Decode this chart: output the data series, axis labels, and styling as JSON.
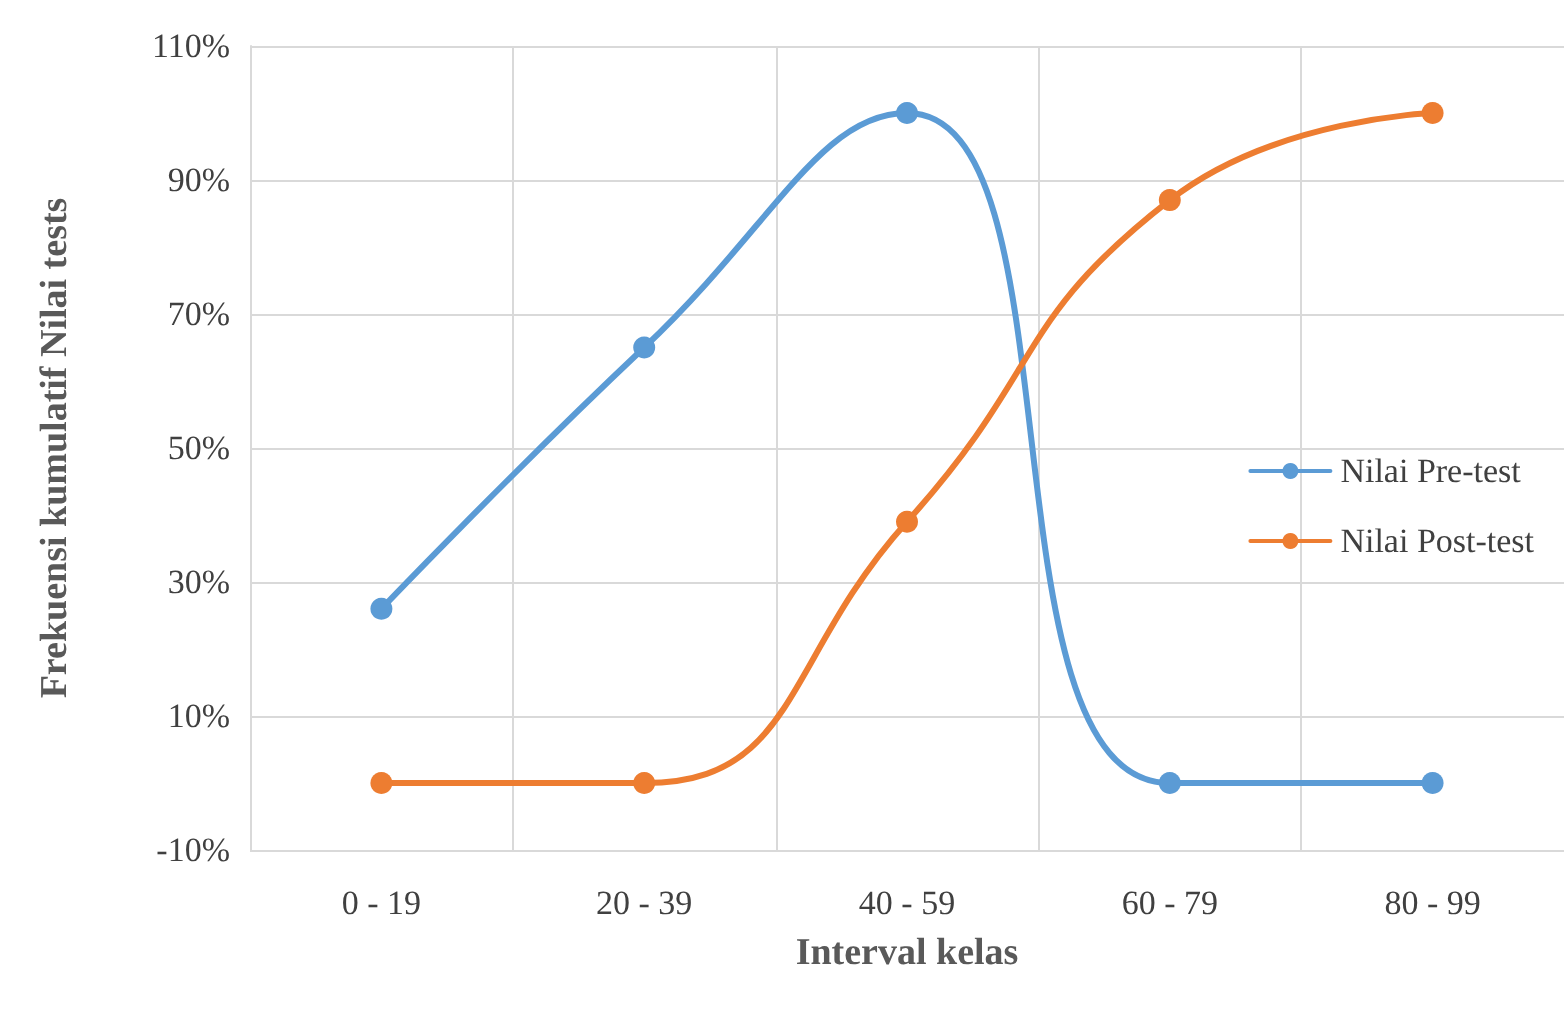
{
  "chart_data": {
    "type": "line",
    "xlabel": "Interval kelas",
    "ylabel": "Frekuensi kumulatif Nilai tests",
    "categories": [
      "0 - 19",
      "20 - 39",
      "40 - 59",
      "60 - 79",
      "80 - 99"
    ],
    "series": [
      {
        "name": "Nilai Pre-test",
        "color": "#5b9bd5",
        "values": [
          26,
          65,
          100,
          0,
          0
        ]
      },
      {
        "name": "Nilai Post-test",
        "color": "#ed7d31",
        "values": [
          0,
          0,
          39,
          87,
          100
        ]
      }
    ],
    "ylim": [
      -10,
      110
    ],
    "yticks": [
      {
        "value": -10,
        "label": "-10%"
      },
      {
        "value": 10,
        "label": "10%"
      },
      {
        "value": 30,
        "label": "30%"
      },
      {
        "value": 50,
        "label": "50%"
      },
      {
        "value": 70,
        "label": "70%"
      },
      {
        "value": 90,
        "label": "90%"
      },
      {
        "value": 110,
        "label": "110%"
      }
    ],
    "grid": true,
    "legend": "right",
    "marker": "circle",
    "line_style": "solid"
  }
}
